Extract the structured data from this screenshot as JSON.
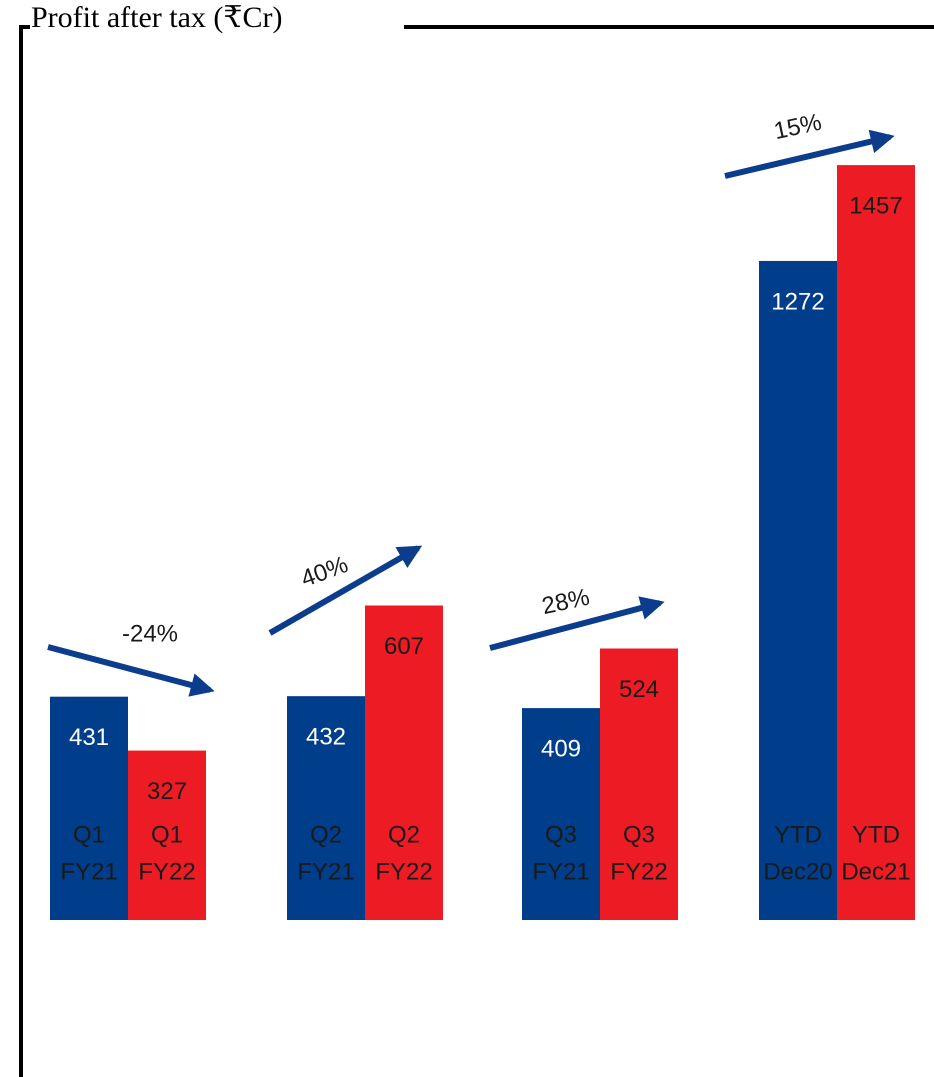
{
  "chart_data": {
    "type": "bar",
    "title": "Profit after tax (₹Cr)",
    "categories": [
      [
        "Q1",
        "FY21"
      ],
      [
        "Q1",
        "FY22"
      ],
      [
        "Q2",
        "FY21"
      ],
      [
        "Q2",
        "FY22"
      ],
      [
        "Q3",
        "FY21"
      ],
      [
        "Q3",
        "FY22"
      ],
      [
        "YTD",
        "Dec20"
      ],
      [
        "YTD",
        "Dec21"
      ]
    ],
    "values": [
      431,
      327,
      432,
      607,
      409,
      524,
      1272,
      1457
    ],
    "colors": [
      "#003d8a",
      "#ed1c24",
      "#003d8a",
      "#ed1c24",
      "#003d8a",
      "#ed1c24",
      "#003d8a",
      "#ed1c24"
    ],
    "label_colors": [
      "#ffffff",
      "#1a1a1a",
      "#ffffff",
      "#1a1a1a",
      "#ffffff",
      "#1a1a1a",
      "#ffffff",
      "#1a1a1a"
    ],
    "annotations": [
      "-24%",
      "40%",
      "28%",
      "15%"
    ],
    "arrow_color": "#0c3d8c",
    "ylim": [
      0,
      1600
    ]
  }
}
